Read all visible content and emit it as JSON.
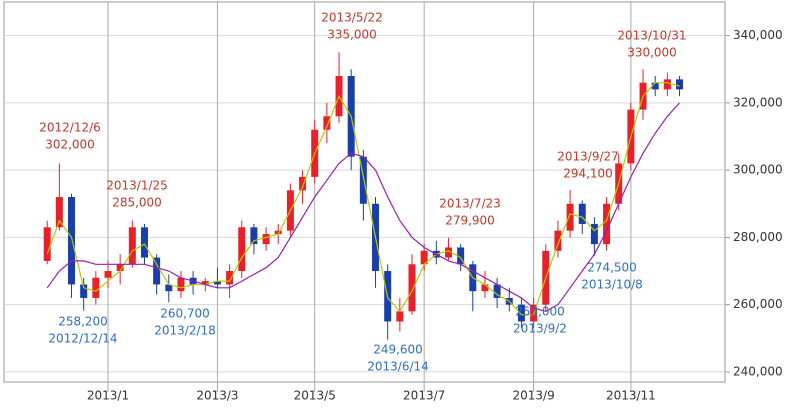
{
  "chart_data": {
    "type": "candlestick",
    "categories": [
      null,
      null,
      null,
      null,
      null,
      "2013/1",
      null,
      null,
      null,
      null,
      null,
      null,
      null,
      null,
      "2013/3",
      null,
      null,
      null,
      null,
      null,
      null,
      null,
      "2013/5",
      null,
      null,
      null,
      null,
      null,
      null,
      null,
      null,
      "2013/7",
      null,
      null,
      null,
      null,
      null,
      null,
      null,
      null,
      "2013/9",
      null,
      null,
      null,
      null,
      null,
      null,
      null,
      "2013/11",
      null,
      null,
      null,
      null
    ],
    "open": [
      273000,
      283000,
      292000,
      266000,
      262000,
      268000,
      270000,
      272000,
      283000,
      274000,
      266000,
      264000,
      268000,
      266000,
      267000,
      266000,
      270000,
      283000,
      278000,
      281000,
      282000,
      294000,
      298000,
      312000,
      316000,
      328000,
      304000,
      290000,
      270000,
      255000,
      258000,
      272000,
      276000,
      274000,
      277000,
      272000,
      264000,
      266000,
      262000,
      260000,
      255000,
      260000,
      276000,
      282000,
      290000,
      284000,
      278000,
      290000,
      302000,
      318000,
      326000,
      324000,
      327000
    ],
    "high": [
      285000,
      302000,
      293000,
      268000,
      270000,
      273000,
      275000,
      285000,
      284000,
      275000,
      269000,
      270000,
      270000,
      268000,
      271000,
      272000,
      285000,
      284000,
      283000,
      284000,
      296000,
      300000,
      315000,
      320000,
      335000,
      330000,
      306000,
      292000,
      272000,
      262000,
      275000,
      278000,
      279000,
      279900,
      278000,
      273000,
      270000,
      268000,
      265000,
      262000,
      262000,
      278000,
      285000,
      294100,
      291000,
      286000,
      292000,
      305000,
      320000,
      330000,
      328000,
      329000,
      328000
    ],
    "low": [
      272000,
      282000,
      262000,
      258200,
      260000,
      265000,
      266000,
      271000,
      272000,
      263000,
      260700,
      262000,
      263000,
      264000,
      265000,
      262000,
      268000,
      275000,
      276000,
      278000,
      280000,
      290000,
      296000,
      308000,
      314000,
      300000,
      285000,
      265000,
      249600,
      252000,
      257000,
      270000,
      272000,
      273000,
      270000,
      258000,
      262000,
      259000,
      258000,
      253000,
      253000,
      258000,
      274000,
      280000,
      281000,
      274500,
      276000,
      288000,
      300000,
      315000,
      322000,
      322000,
      322000
    ],
    "close": [
      283000,
      292000,
      266000,
      262000,
      268000,
      270000,
      272000,
      283000,
      274000,
      266000,
      264000,
      268000,
      266000,
      267000,
      266000,
      270000,
      283000,
      278000,
      281000,
      282000,
      294000,
      298000,
      312000,
      316000,
      328000,
      304000,
      290000,
      270000,
      255000,
      258000,
      272000,
      276000,
      274000,
      277000,
      272000,
      264000,
      266000,
      262000,
      260000,
      255000,
      260000,
      276000,
      282000,
      290000,
      284000,
      278000,
      290000,
      302000,
      318000,
      326000,
      324000,
      327000,
      324000
    ],
    "up_color": "#e8202a",
    "down_color": "#1a3fa8",
    "ma_lines": [
      {
        "color": "#b8c800",
        "values": [
          275000,
          285000,
          280000,
          265000,
          264000,
          267000,
          270000,
          276000,
          278000,
          272000,
          266000,
          265000,
          266000,
          266000,
          267000,
          267000,
          274000,
          279000,
          280000,
          281000,
          288000,
          295000,
          305000,
          313000,
          322000,
          316000,
          298000,
          280000,
          262000,
          258000,
          264000,
          272000,
          275000,
          276000,
          274000,
          268000,
          266000,
          263000,
          261000,
          257000,
          257000,
          268000,
          278000,
          287000,
          286000,
          282000,
          285000,
          296000,
          310000,
          322000,
          326000,
          326000,
          325000
        ]
      },
      {
        "color": "#9b1fb0",
        "values": [
          265000,
          270000,
          273000,
          273000,
          272000,
          272000,
          272000,
          272000,
          272000,
          271000,
          270000,
          268000,
          267000,
          266000,
          265000,
          265000,
          267000,
          269000,
          271000,
          274000,
          280000,
          286000,
          292000,
          297000,
          302000,
          305000,
          304000,
          300000,
          292000,
          285000,
          280000,
          277000,
          275000,
          273000,
          272000,
          270000,
          268000,
          266000,
          264000,
          262000,
          259000,
          258000,
          260000,
          265000,
          270000,
          275000,
          282000,
          290000,
          298000,
          305000,
          311000,
          316000,
          320000
        ]
      }
    ],
    "ylim": [
      237000,
      350000
    ],
    "yticks": [
      {
        "value": 240000,
        "label": "240,000"
      },
      {
        "value": 260000,
        "label": "260,000"
      },
      {
        "value": 280000,
        "label": "280,000"
      },
      {
        "value": 300000,
        "label": "300,000"
      },
      {
        "value": 320000,
        "label": "320,000"
      },
      {
        "value": 340000,
        "label": "340,000"
      }
    ],
    "grid": true,
    "annotations": [
      {
        "date": "2012/12/6",
        "value": 302000,
        "label": "302,000",
        "color": "#c0392b"
      },
      {
        "date": "2013/1/25",
        "value": 285000,
        "label": "285,000",
        "color": "#c0392b"
      },
      {
        "date": "2013/5/22",
        "value": 335000,
        "label": "335,000",
        "color": "#c0392b"
      },
      {
        "date": "2013/7/23",
        "value": 279900,
        "label": "279,900",
        "color": "#c0392b"
      },
      {
        "date": "2013/9/27",
        "value": 294100,
        "label": "294,100",
        "color": "#c0392b"
      },
      {
        "date": "2013/10/31",
        "value": 330000,
        "label": "330,000",
        "color": "#c0392b"
      },
      {
        "date": "2012/12/14",
        "value": 258200,
        "label": "258,200",
        "color": "#2f6fc4"
      },
      {
        "date": "2013/2/18",
        "value": 260700,
        "label": "260,700",
        "color": "#2f6fc4"
      },
      {
        "date": "2013/6/14",
        "value": 249600,
        "label": "249,600",
        "color": "#2f6fc4"
      },
      {
        "date": "2013/9/2",
        "value": 253000,
        "label": "253,000",
        "color": "#2f6fc4"
      },
      {
        "date": "2013/10/8",
        "value": 274500,
        "label": "274,500",
        "color": "#2f6fc4"
      }
    ]
  }
}
